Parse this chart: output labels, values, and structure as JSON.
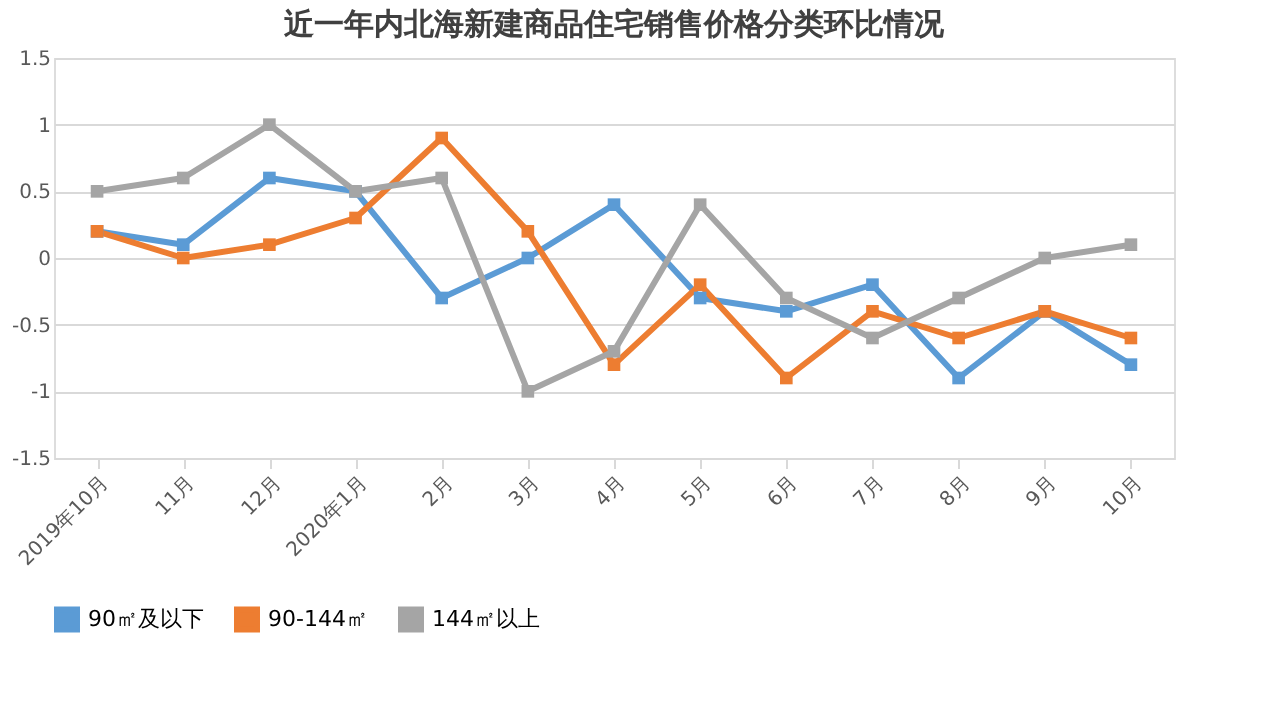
{
  "chart_data": {
    "type": "line",
    "title": "近一年内北海新建商品住宅销售价格分类环比情况",
    "categories": [
      "2019年10月",
      "11月",
      "12月",
      "2020年1月",
      "2月",
      "3月",
      "4月",
      "5月",
      "6月",
      "7月",
      "8月",
      "9月",
      "10月"
    ],
    "series": [
      {
        "name": "90㎡及以下",
        "color": "#5b9bd5",
        "values": [
          0.2,
          0.1,
          0.6,
          0.5,
          -0.3,
          0,
          0.4,
          -0.3,
          -0.4,
          -0.2,
          -0.9,
          -0.4,
          -0.8
        ]
      },
      {
        "name": "90-144㎡",
        "color": "#ed7d31",
        "values": [
          0.2,
          0,
          0.1,
          0.3,
          0.9,
          0.2,
          -0.8,
          -0.2,
          -0.9,
          -0.4,
          -0.6,
          -0.4,
          -0.6
        ]
      },
      {
        "name": "144㎡以上",
        "color": "#a5a5a5",
        "values": [
          0.5,
          0.6,
          1.0,
          0.5,
          0.6,
          -1.0,
          -0.7,
          0.4,
          -0.3,
          -0.6,
          -0.3,
          0,
          0.1
        ]
      }
    ],
    "ylim": [
      -1.5,
      1.5
    ],
    "yticks": [
      -1.5,
      -1,
      -0.5,
      0,
      0.5,
      1,
      1.5
    ],
    "grid": "y",
    "legend": "bottom",
    "marker": "square",
    "line_style": "solid"
  }
}
